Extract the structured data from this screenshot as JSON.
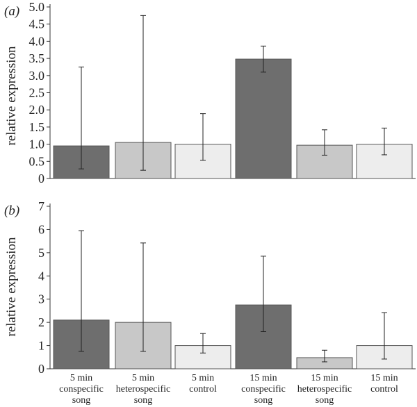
{
  "chart_data": [
    {
      "type": "bar",
      "panel_label": "(a)",
      "ylabel": "relative expression",
      "ylim": [
        0,
        5.0
      ],
      "yticks": [
        "0",
        "0.5",
        "1.0",
        "1.5",
        "2.0",
        "2.5",
        "3.0",
        "3.5",
        "4.0",
        "4.5",
        "5.0"
      ],
      "grid": false,
      "categories": [
        "5 min conspecific song",
        "5 min heterospecific song",
        "5 min control",
        "15 min conspecific song",
        "15 min heterospecific song",
        "15 min control"
      ],
      "values": [
        0.95,
        1.05,
        1.0,
        3.48,
        0.97,
        1.0
      ],
      "error_low": [
        0.28,
        0.24,
        0.53,
        3.1,
        0.68,
        0.69
      ],
      "error_high": [
        3.25,
        4.75,
        1.89,
        3.86,
        1.42,
        1.47
      ],
      "colors": [
        "#6e6e6e",
        "#c8c8c8",
        "#ededed",
        "#6e6e6e",
        "#c8c8c8",
        "#ededed"
      ]
    },
    {
      "type": "bar",
      "panel_label": "(b)",
      "ylabel": "relative expression",
      "ylim": [
        0,
        7
      ],
      "yticks": [
        "0",
        "1",
        "2",
        "3",
        "4",
        "5",
        "6",
        "7"
      ],
      "grid": false,
      "categories": [
        "5 min conspecific song",
        "5 min heterospecific song",
        "5 min control",
        "15 min conspecific song",
        "15 min heterospecific song",
        "15 min control"
      ],
      "category_lines": [
        [
          "5 min",
          "conspecific",
          "song"
        ],
        [
          "5 min",
          "heterospecific",
          "song"
        ],
        [
          "5 min",
          "control"
        ],
        [
          "15 min",
          "conspecific",
          "song"
        ],
        [
          "15 min",
          "heterospecific",
          "song"
        ],
        [
          "15 min",
          "control"
        ]
      ],
      "values": [
        2.1,
        2.0,
        1.0,
        2.75,
        0.48,
        1.0
      ],
      "error_low": [
        0.75,
        0.75,
        0.68,
        1.6,
        0.3,
        0.42
      ],
      "error_high": [
        5.95,
        5.42,
        1.52,
        4.85,
        0.8,
        2.42
      ],
      "colors": [
        "#6e6e6e",
        "#c8c8c8",
        "#ededed",
        "#6e6e6e",
        "#c8c8c8",
        "#ededed"
      ]
    }
  ]
}
